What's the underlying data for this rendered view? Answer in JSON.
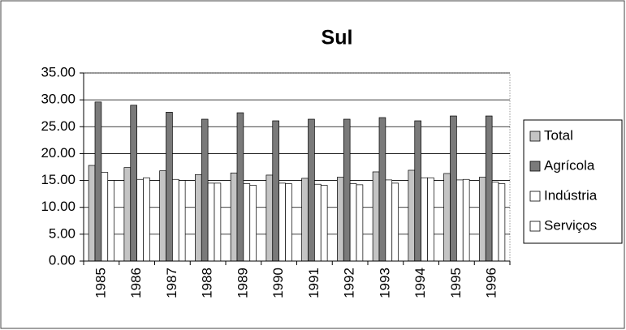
{
  "chart_data": {
    "type": "bar",
    "title": "Sul",
    "categories": [
      "1985",
      "1986",
      "1987",
      "1988",
      "1989",
      "1990",
      "1991",
      "1992",
      "1993",
      "1994",
      "1995",
      "1996"
    ],
    "series": [
      {
        "name": "Total",
        "color": "#c4c4c4",
        "values": [
          17.8,
          17.4,
          16.8,
          16.1,
          16.4,
          16.0,
          15.4,
          15.6,
          16.6,
          16.9,
          16.3,
          15.6
        ]
      },
      {
        "name": "Agrícola",
        "color": "#7a7a7a",
        "values": [
          29.6,
          29.0,
          27.7,
          26.4,
          27.6,
          26.1,
          26.4,
          26.4,
          26.7,
          26.1,
          27.0,
          27.0
        ]
      },
      {
        "name": "Indústria",
        "color": "#ffffff",
        "values": [
          16.5,
          15.2,
          15.2,
          14.5,
          14.4,
          14.5,
          14.3,
          14.4,
          15.1,
          15.5,
          15.1,
          14.7
        ]
      },
      {
        "name": "Serviços",
        "color": "#ffffff",
        "values": [
          15.0,
          15.5,
          15.0,
          14.5,
          14.1,
          14.4,
          14.1,
          14.2,
          14.5,
          15.5,
          15.2,
          14.4
        ]
      }
    ],
    "ylim": [
      0,
      35
    ],
    "yticks": [
      {
        "value": 0,
        "label": "0.00"
      },
      {
        "value": 5,
        "label": "5.00"
      },
      {
        "value": 10,
        "label": "10.00"
      },
      {
        "value": 15,
        "label": "15.00"
      },
      {
        "value": 20,
        "label": "20.00"
      },
      {
        "value": 25,
        "label": "25.00"
      },
      {
        "value": 30,
        "label": "30.00"
      },
      {
        "value": 35,
        "label": "35.00"
      }
    ],
    "grid": true,
    "legend": "right"
  }
}
